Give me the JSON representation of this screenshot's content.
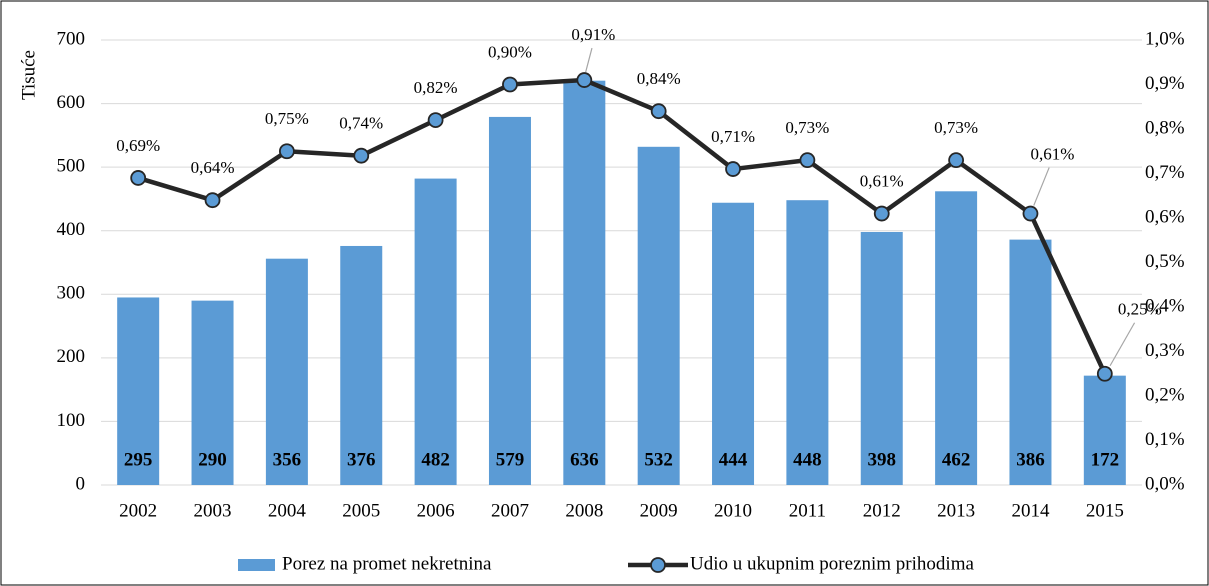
{
  "chart_data": {
    "type": "bar_line",
    "y_label": "Tisuće",
    "categories": [
      "2002",
      "2003",
      "2004",
      "2005",
      "2006",
      "2007",
      "2008",
      "2009",
      "2010",
      "2011",
      "2012",
      "2013",
      "2014",
      "2015"
    ],
    "series": [
      {
        "name": "Porez na promet nekretnina",
        "color": "#5b9bd5",
        "type": "bar",
        "values": [
          295,
          290,
          356,
          376,
          482,
          579,
          636,
          532,
          444,
          448,
          398,
          462,
          386,
          172
        ]
      },
      {
        "name": "Udio u ukupnim poreznim prihodima",
        "color": "#262626",
        "marker_color": "#5b9bd5",
        "type": "line",
        "axis": "y2",
        "values": [
          0.69,
          0.64,
          0.75,
          0.74,
          0.82,
          0.9,
          0.91,
          0.84,
          0.71,
          0.73,
          0.61,
          0.73,
          0.61,
          0.25
        ],
        "value_labels": [
          "0,69%",
          "0,64%",
          "0,75%",
          "0,74%",
          "0,82%",
          "0,90%",
          "0,91%",
          "0,84%",
          "0,71%",
          "0,73%",
          "0,61%",
          "0,73%",
          "0,61%",
          "0,25%"
        ]
      }
    ],
    "ylim": [
      0,
      700
    ],
    "yticks": [
      0,
      100,
      200,
      300,
      400,
      500,
      600,
      700
    ],
    "y2lim": [
      0,
      1
    ],
    "y2ticks": [
      {
        "value": 0,
        "label": "0,0%"
      },
      {
        "value": 0.1,
        "label": "0,1%"
      },
      {
        "value": 0.2,
        "label": "0,2%"
      },
      {
        "value": 0.3,
        "label": "0,3%"
      },
      {
        "value": 0.4,
        "label": "0,4%"
      },
      {
        "value": 0.5,
        "label": "0,5%"
      },
      {
        "value": 0.6,
        "label": "0,6%"
      },
      {
        "value": 0.7,
        "label": "0,7%"
      },
      {
        "value": 0.8,
        "label": "0,8%"
      },
      {
        "value": 0.9,
        "label": "0,9%"
      },
      {
        "value": 1,
        "label": "1,0%"
      }
    ],
    "grid": true,
    "legend": "bottom"
  }
}
